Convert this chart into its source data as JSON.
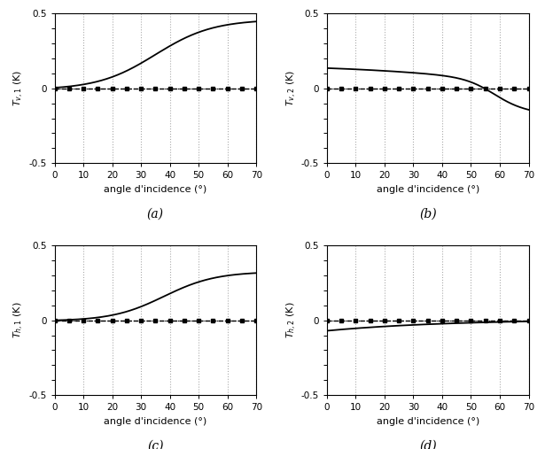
{
  "xlim": [
    0,
    70
  ],
  "ylim": [
    -0.5,
    0.5
  ],
  "xlabel": "angle d'incidence (°)",
  "yticks": [
    -0.5,
    -0.4,
    -0.3,
    -0.2,
    -0.1,
    0,
    0.1,
    0.2,
    0.3,
    0.4,
    0.5
  ],
  "xticks": [
    0,
    10,
    20,
    30,
    40,
    50,
    60,
    70
  ],
  "grid_color": "#aaaaaa",
  "subplot_labels": [
    "(a)",
    "(b)",
    "(c)",
    "(d)"
  ],
  "ylabels": [
    "$T_{v,1}$ (K)",
    "$T_{v,2}$ (K)",
    "$T_{h,1}$ (K)",
    "$T_{h,2}$ (K)"
  ],
  "solid_color": "#000000",
  "dotted_color": "#000000",
  "background_color": "#ffffff"
}
